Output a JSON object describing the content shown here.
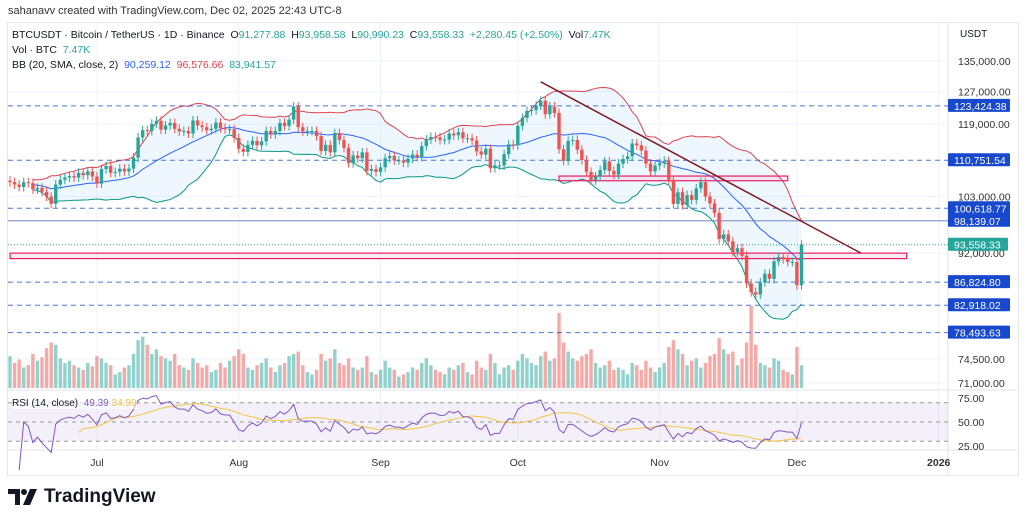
{
  "header": {
    "credit": "sahanavv created with TradingView.com, Dec 02, 2025 22:43 UTC-8"
  },
  "legend": {
    "symbol": "BTCUSDT · Bitcoin / TetherUS · 1D · Binance",
    "open_label": "O",
    "open": "91,277.88",
    "high_label": "H",
    "high": "93,958.58",
    "low_label": "L",
    "low": "90,990.23",
    "close_label": "C",
    "close": "93,558.33",
    "change": "+2,280.45 (+2.50%)",
    "vol_label": "Vol",
    "vol": "7.47K",
    "vol_line_label": "Vol · BTC",
    "vol_line_value": "7.47K",
    "bb_label": "BB (20, SMA, close, 2)",
    "bb_basis": "90,259.12",
    "bb_upper": "96,576.66",
    "bb_lower": "83,941.57",
    "rsi_label": "RSI (14, close)",
    "rsi_value": "49.39",
    "rsi_ma": "34.99"
  },
  "footer": {
    "brand": "TradingView"
  },
  "colors": {
    "up": "#26a69a",
    "down": "#ef5350",
    "bb_basis": "#2962ff",
    "bb_upper": "#e0424f",
    "bb_lower": "#089981",
    "level": "#1848cc",
    "rsi": "#7e57c2",
    "rsi_ma": "#f5c542",
    "trendline": "#801922",
    "zone": "#e91e63"
  },
  "chart_data": {
    "type": "candlestick",
    "scale": "log",
    "currency_label": "USDT",
    "start_date": "2025-06-12",
    "closes": [
      106,
      105.5,
      105,
      106,
      105.8,
      104.5,
      104.8,
      104,
      103,
      101.5,
      105.5,
      106.5,
      107,
      107.3,
      107,
      108,
      107.5,
      108.3,
      107.2,
      105.7,
      108.8,
      109.5,
      108,
      108.2,
      108.9,
      108.3,
      108.9,
      111.3,
      115.9,
      117.6,
      117.4,
      119.1,
      119.8,
      117.7,
      118.7,
      119.3,
      117.9,
      117.3,
      117.4,
      116.8,
      119.9,
      118.7,
      118.3,
      117.6,
      117.9,
      119.4,
      118.1,
      117.8,
      117.8,
      115.8,
      113.3,
      112.6,
      114.2,
      115.1,
      114.1,
      115,
      117.4,
      116.6,
      117.4,
      119.3,
      118.6,
      120.1,
      123.3,
      118.3,
      117.3,
      117.4,
      117.4,
      116.2,
      112.8,
      114.2,
      112.5,
      116.9,
      115.3,
      113.5,
      110.1,
      111.8,
      111.2,
      112.5,
      108.4,
      108.8,
      108.2,
      109.2,
      111.2,
      111.7,
      110.7,
      110.7,
      110.2,
      111.1,
      112,
      111.5,
      113.9,
      115.4,
      116,
      115.9,
      115.3,
      115.4,
      116.8,
      116.4,
      117.1,
      115.7,
      115.7,
      115.2,
      112.7,
      112,
      113.3,
      109,
      109.6,
      109.6,
      112.1,
      114.3,
      114.1,
      118.6,
      120.5,
      122.2,
      122.4,
      123.5,
      124.7,
      121.4,
      123.3,
      121.7,
      113.2,
      110.6,
      115.1,
      115.3,
      113.1,
      110.8,
      108.2,
      106.4,
      107.2,
      108.6,
      110.5,
      108.4,
      107.6,
      110,
      111,
      111.6,
      114.5,
      114.1,
      112.9,
      110,
      108.3,
      109.6,
      110.1,
      110.6,
      106.5,
      101.5,
      103.9,
      101.3,
      103.3,
      102.3,
      104.7,
      106,
      103,
      101.6,
      99.7,
      94.6,
      95.5,
      94.2,
      92.2,
      92.9,
      91.5,
      86.6,
      85.1,
      84.7,
      86.8,
      88.3,
      87.4,
      90.5,
      91.3,
      90.9,
      90.4,
      90.4,
      86.3,
      93.56
    ],
    "volumes": [
      28,
      22,
      25,
      18,
      20,
      30,
      24,
      27,
      35,
      40,
      38,
      26,
      22,
      24,
      20,
      18,
      16,
      22,
      19,
      28,
      26,
      22,
      20,
      12,
      14,
      18,
      20,
      30,
      42,
      45,
      38,
      30,
      34,
      28,
      26,
      24,
      30,
      20,
      18,
      16,
      26,
      22,
      18,
      20,
      14,
      16,
      22,
      18,
      24,
      28,
      34,
      30,
      18,
      16,
      20,
      22,
      26,
      18,
      14,
      20,
      22,
      28,
      30,
      32,
      20,
      14,
      12,
      16,
      30,
      24,
      26,
      34,
      22,
      20,
      26,
      18,
      16,
      18,
      28,
      14,
      12,
      16,
      24,
      18,
      16,
      10,
      12,
      14,
      18,
      16,
      22,
      26,
      20,
      16,
      14,
      12,
      18,
      16,
      20,
      22,
      14,
      12,
      24,
      18,
      16,
      30,
      22,
      12,
      18,
      20,
      16,
      24,
      30,
      26,
      22,
      20,
      28,
      32,
      24,
      26,
      66,
      40,
      32,
      26,
      24,
      28,
      30,
      34,
      22,
      18,
      20,
      24,
      16,
      18,
      16,
      12,
      22,
      20,
      16,
      24,
      18,
      14,
      18,
      22,
      36,
      42,
      34,
      30,
      20,
      24,
      26,
      18,
      22,
      28,
      30,
      44,
      34,
      30,
      32,
      20,
      26,
      40,
      72,
      38,
      22,
      20,
      18,
      26,
      24,
      16,
      14,
      12,
      36,
      20
    ],
    "levels": [
      {
        "price": 123424.38,
        "label": "123,424.38",
        "style": "dashed"
      },
      {
        "price": 110751.54,
        "label": "110,751.54",
        "style": "dashed"
      },
      {
        "price": 100618.77,
        "label": "100,618.77",
        "style": "dashed"
      },
      {
        "price": 98139.07,
        "label": "98,139.07",
        "style": "solid"
      },
      {
        "price": 86824.8,
        "label": "86,824.80",
        "style": "dashed"
      },
      {
        "price": 82918.02,
        "label": "82,918.02",
        "style": "dashed"
      },
      {
        "price": 78493.63,
        "label": "78,493.63",
        "style": "dashed"
      }
    ],
    "last_price": {
      "price": 93558.33,
      "label": "93,558.33"
    },
    "zones": [
      {
        "from_date": "2025-10-10",
        "to_date": "2025-11-29",
        "low": 106300,
        "high": 107300
      },
      {
        "from_date": "2025-06-12",
        "to_date": "2025-12-25",
        "low": 91000,
        "high": 92000
      }
    ],
    "trendline": {
      "from": {
        "date": "2025-10-06",
        "price": 129500
      },
      "to": {
        "date": "2025-12-15",
        "price": 92000
      }
    },
    "y_ticks": [
      "135,000.00",
      "127,000.00",
      "119,000.00",
      "103,000.00",
      "92,000.00",
      "74,500.00",
      "71,000.00"
    ],
    "y_tick_values": [
      135000,
      127000,
      119000,
      103000,
      92000,
      74500,
      71000
    ],
    "x_ticks": [
      {
        "label": "Jul",
        "date": "2025-07-01"
      },
      {
        "label": "Aug",
        "date": "2025-08-01"
      },
      {
        "label": "Sep",
        "date": "2025-09-01"
      },
      {
        "label": "Oct",
        "date": "2025-10-01"
      },
      {
        "label": "Nov",
        "date": "2025-11-01"
      },
      {
        "label": "Dec",
        "date": "2025-12-01"
      },
      {
        "label": "2026",
        "date": "2026-01-01",
        "bold": true
      }
    ],
    "rsi_ticks": [
      "75.00",
      "50.00",
      "25.00"
    ],
    "rsi_tick_values": [
      75,
      50,
      25
    ],
    "grid": true
  }
}
